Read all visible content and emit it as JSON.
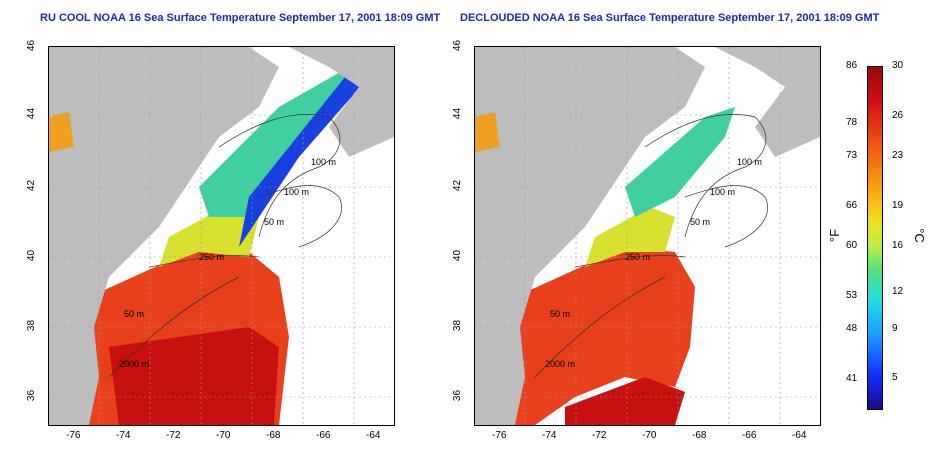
{
  "panels": [
    {
      "title": "RU COOL NOAA 16 Sea Surface Temperature September 17, 2001 18:09 GMT",
      "variant": "full",
      "contour_labels": [
        "100 m",
        "100 m",
        "50 m",
        "250 m",
        "50 m",
        "2000 m"
      ]
    },
    {
      "title": "DECLOUDED NOAA 16 Sea Surface Temperature September 17, 2001 18:09 GMT",
      "variant": "declouded",
      "contour_labels": [
        "100 m",
        "100 m",
        "50 m",
        "250 m",
        "50 m",
        "2000 m"
      ]
    }
  ],
  "lon_ticks": [
    "-76",
    "-74",
    "-72",
    "-70",
    "-68",
    "-66",
    "-64"
  ],
  "lat_ticks": [
    "46",
    "44",
    "42",
    "40",
    "38",
    "36"
  ],
  "colorbar": {
    "fahrenheit_label": "°F",
    "celsius_label": "°C",
    "fahrenheit_ticks": [
      "86",
      "78",
      "73",
      "66",
      "60",
      "53",
      "48",
      "41"
    ],
    "celsius_ticks": [
      "30",
      "26",
      "23",
      "19",
      "16",
      "12",
      "9",
      "5"
    ]
  },
  "colors": {
    "land": "#bdbdbd",
    "cloud": "#ffffff",
    "warm": "#e8401a",
    "hot": "#c81010",
    "mid": "#f0c020",
    "cool": "#40d0a0",
    "cold": "#1840e0",
    "title": "#1a2aa8"
  }
}
